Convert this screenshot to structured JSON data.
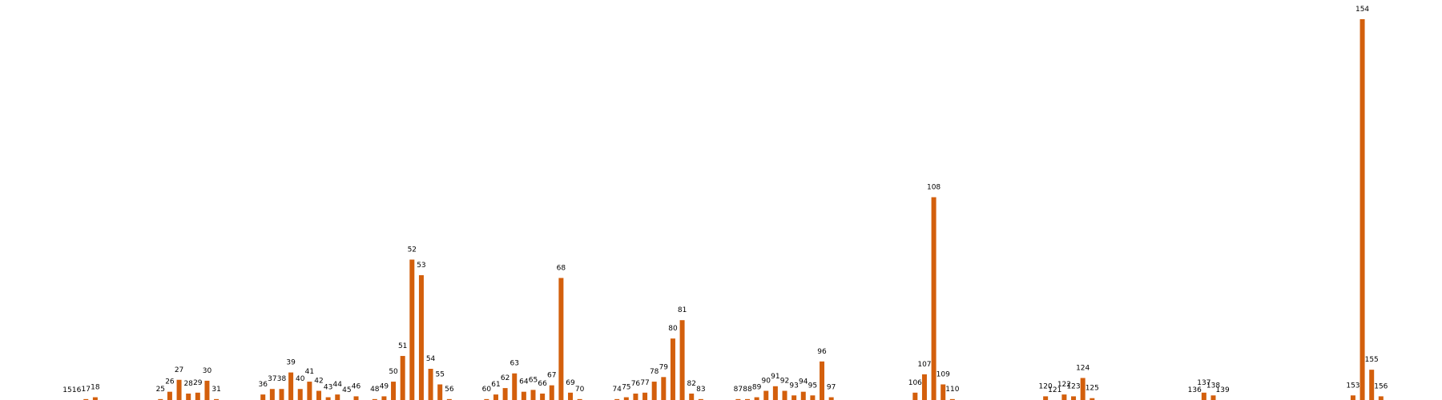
{
  "chart_data": {
    "type": "bar",
    "color": "#d35f0c",
    "x": [
      15,
      16,
      17,
      18,
      25,
      26,
      27,
      28,
      29,
      30,
      31,
      36,
      37,
      38,
      39,
      40,
      41,
      42,
      43,
      44,
      45,
      46,
      48,
      49,
      50,
      51,
      52,
      53,
      54,
      55,
      56,
      60,
      61,
      62,
      63,
      64,
      65,
      66,
      67,
      68,
      69,
      70,
      74,
      75,
      76,
      77,
      78,
      79,
      80,
      81,
      82,
      83,
      87,
      88,
      89,
      90,
      91,
      92,
      93,
      94,
      95,
      96,
      97,
      106,
      107,
      108,
      109,
      110,
      120,
      121,
      122,
      123,
      124,
      125,
      136,
      137,
      138,
      139,
      153,
      154,
      155,
      156
    ],
    "values": [
      0,
      0,
      1,
      3,
      1,
      9,
      22,
      7,
      8,
      21,
      1,
      6,
      12,
      12,
      30,
      12,
      20,
      10,
      3,
      6,
      0,
      4,
      1,
      4,
      20,
      48,
      153,
      136,
      34,
      17,
      1,
      1,
      6,
      13,
      29,
      9,
      11,
      7,
      16,
      133,
      8,
      1,
      1,
      3,
      7,
      8,
      20,
      25,
      67,
      87,
      7,
      1,
      1,
      1,
      3,
      10,
      15,
      10,
      5,
      9,
      5,
      42,
      3,
      8,
      28,
      221,
      17,
      1,
      4,
      0,
      6,
      4,
      24,
      2,
      0,
      8,
      5,
      0,
      5,
      415,
      33,
      4
    ]
  }
}
